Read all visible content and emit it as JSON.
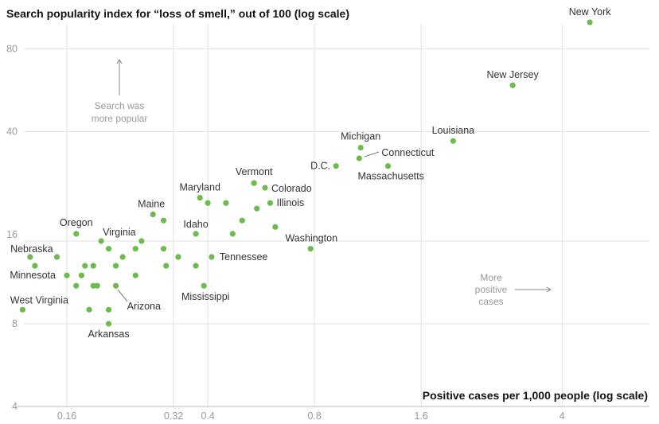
{
  "chart_data": {
    "type": "scatter",
    "title": "Search popularity index for “loss of smell,” out of 100 (log scale)",
    "xlabel": "Positive cases per 1,000 people (log scale)",
    "ylabel": "Search popularity index for “loss of smell,” out of 100 (log scale)",
    "xscale": "log",
    "yscale": "log",
    "xlim": [
      0.115,
      6.5
    ],
    "ylim": [
      4,
      100
    ],
    "xticks": [
      {
        "v": 0.16,
        "label": "0.16"
      },
      {
        "v": 0.32,
        "label": "0.32"
      },
      {
        "v": 0.4,
        "label": "0.4"
      },
      {
        "v": 0.8,
        "label": "0.8"
      },
      {
        "v": 1.6,
        "label": "1.6"
      },
      {
        "v": 4,
        "label": "4"
      }
    ],
    "yticks": [
      {
        "v": 4,
        "label": "4"
      },
      {
        "v": 8,
        "label": "8"
      },
      {
        "v": 16,
        "label": "16"
      },
      {
        "v": 40,
        "label": "40"
      },
      {
        "v": 80,
        "label": "80"
      }
    ],
    "grid": true,
    "point_color": "#6dba4f",
    "points": [
      {
        "name": "New York",
        "x": 4.79,
        "y": 100
      },
      {
        "name": "New Jersey",
        "x": 2.9,
        "y": 59
      },
      {
        "name": "Louisiana",
        "x": 1.97,
        "y": 37
      },
      {
        "name": "Michigan",
        "x": 1.08,
        "y": 35
      },
      {
        "name": "Connecticut",
        "x": 1.07,
        "y": 32
      },
      {
        "name": "Massachusetts",
        "x": 1.29,
        "y": 30
      },
      {
        "name": "D.C.",
        "x": 0.92,
        "y": 30
      },
      {
        "name": "Vermont",
        "x": 0.54,
        "y": 26
      },
      {
        "name": "Colorado",
        "x": 0.58,
        "y": 25
      },
      {
        "name": "Maryland",
        "x": 0.38,
        "y": 23
      },
      {
        "name": "",
        "x": 0.4,
        "y": 22
      },
      {
        "name": "",
        "x": 0.45,
        "y": 22
      },
      {
        "name": "Illinois",
        "x": 0.6,
        "y": 22
      },
      {
        "name": "",
        "x": 0.55,
        "y": 21
      },
      {
        "name": "Maine",
        "x": 0.28,
        "y": 20
      },
      {
        "name": "",
        "x": 0.3,
        "y": 19
      },
      {
        "name": "",
        "x": 0.5,
        "y": 19
      },
      {
        "name": "",
        "x": 0.62,
        "y": 18
      },
      {
        "name": "Idaho",
        "x": 0.37,
        "y": 17
      },
      {
        "name": "",
        "x": 0.47,
        "y": 17
      },
      {
        "name": "Oregon",
        "x": 0.17,
        "y": 17
      },
      {
        "name": "Virginia",
        "x": 0.2,
        "y": 16
      },
      {
        "name": "",
        "x": 0.26,
        "y": 16
      },
      {
        "name": "Washington",
        "x": 0.78,
        "y": 15
      },
      {
        "name": "",
        "x": 0.21,
        "y": 15
      },
      {
        "name": "",
        "x": 0.25,
        "y": 15
      },
      {
        "name": "",
        "x": 0.3,
        "y": 15
      },
      {
        "name": "Nebraska",
        "x": 0.126,
        "y": 14
      },
      {
        "name": "",
        "x": 0.15,
        "y": 14
      },
      {
        "name": "",
        "x": 0.23,
        "y": 14
      },
      {
        "name": "",
        "x": 0.33,
        "y": 14
      },
      {
        "name": "Tennessee",
        "x": 0.41,
        "y": 14
      },
      {
        "name": "",
        "x": 0.13,
        "y": 13
      },
      {
        "name": "",
        "x": 0.18,
        "y": 13
      },
      {
        "name": "",
        "x": 0.19,
        "y": 13
      },
      {
        "name": "",
        "x": 0.22,
        "y": 13
      },
      {
        "name": "",
        "x": 0.305,
        "y": 13
      },
      {
        "name": "",
        "x": 0.37,
        "y": 13
      },
      {
        "name": "Minnesota",
        "x": 0.16,
        "y": 12
      },
      {
        "name": "",
        "x": 0.176,
        "y": 12
      },
      {
        "name": "",
        "x": 0.25,
        "y": 12
      },
      {
        "name": "",
        "x": 0.17,
        "y": 11
      },
      {
        "name": "",
        "x": 0.19,
        "y": 11
      },
      {
        "name": "",
        "x": 0.195,
        "y": 11
      },
      {
        "name": "Arizona",
        "x": 0.22,
        "y": 11
      },
      {
        "name": "Mississippi",
        "x": 0.39,
        "y": 11
      },
      {
        "name": "West Virginia",
        "x": 0.12,
        "y": 9
      },
      {
        "name": "",
        "x": 0.185,
        "y": 9
      },
      {
        "name": "",
        "x": 0.21,
        "y": 9
      },
      {
        "name": "Arkansas",
        "x": 0.21,
        "y": 8
      }
    ],
    "annotations": {
      "up": [
        "Search was",
        "more popular"
      ],
      "right": [
        "More",
        "positive",
        "cases"
      ]
    }
  }
}
